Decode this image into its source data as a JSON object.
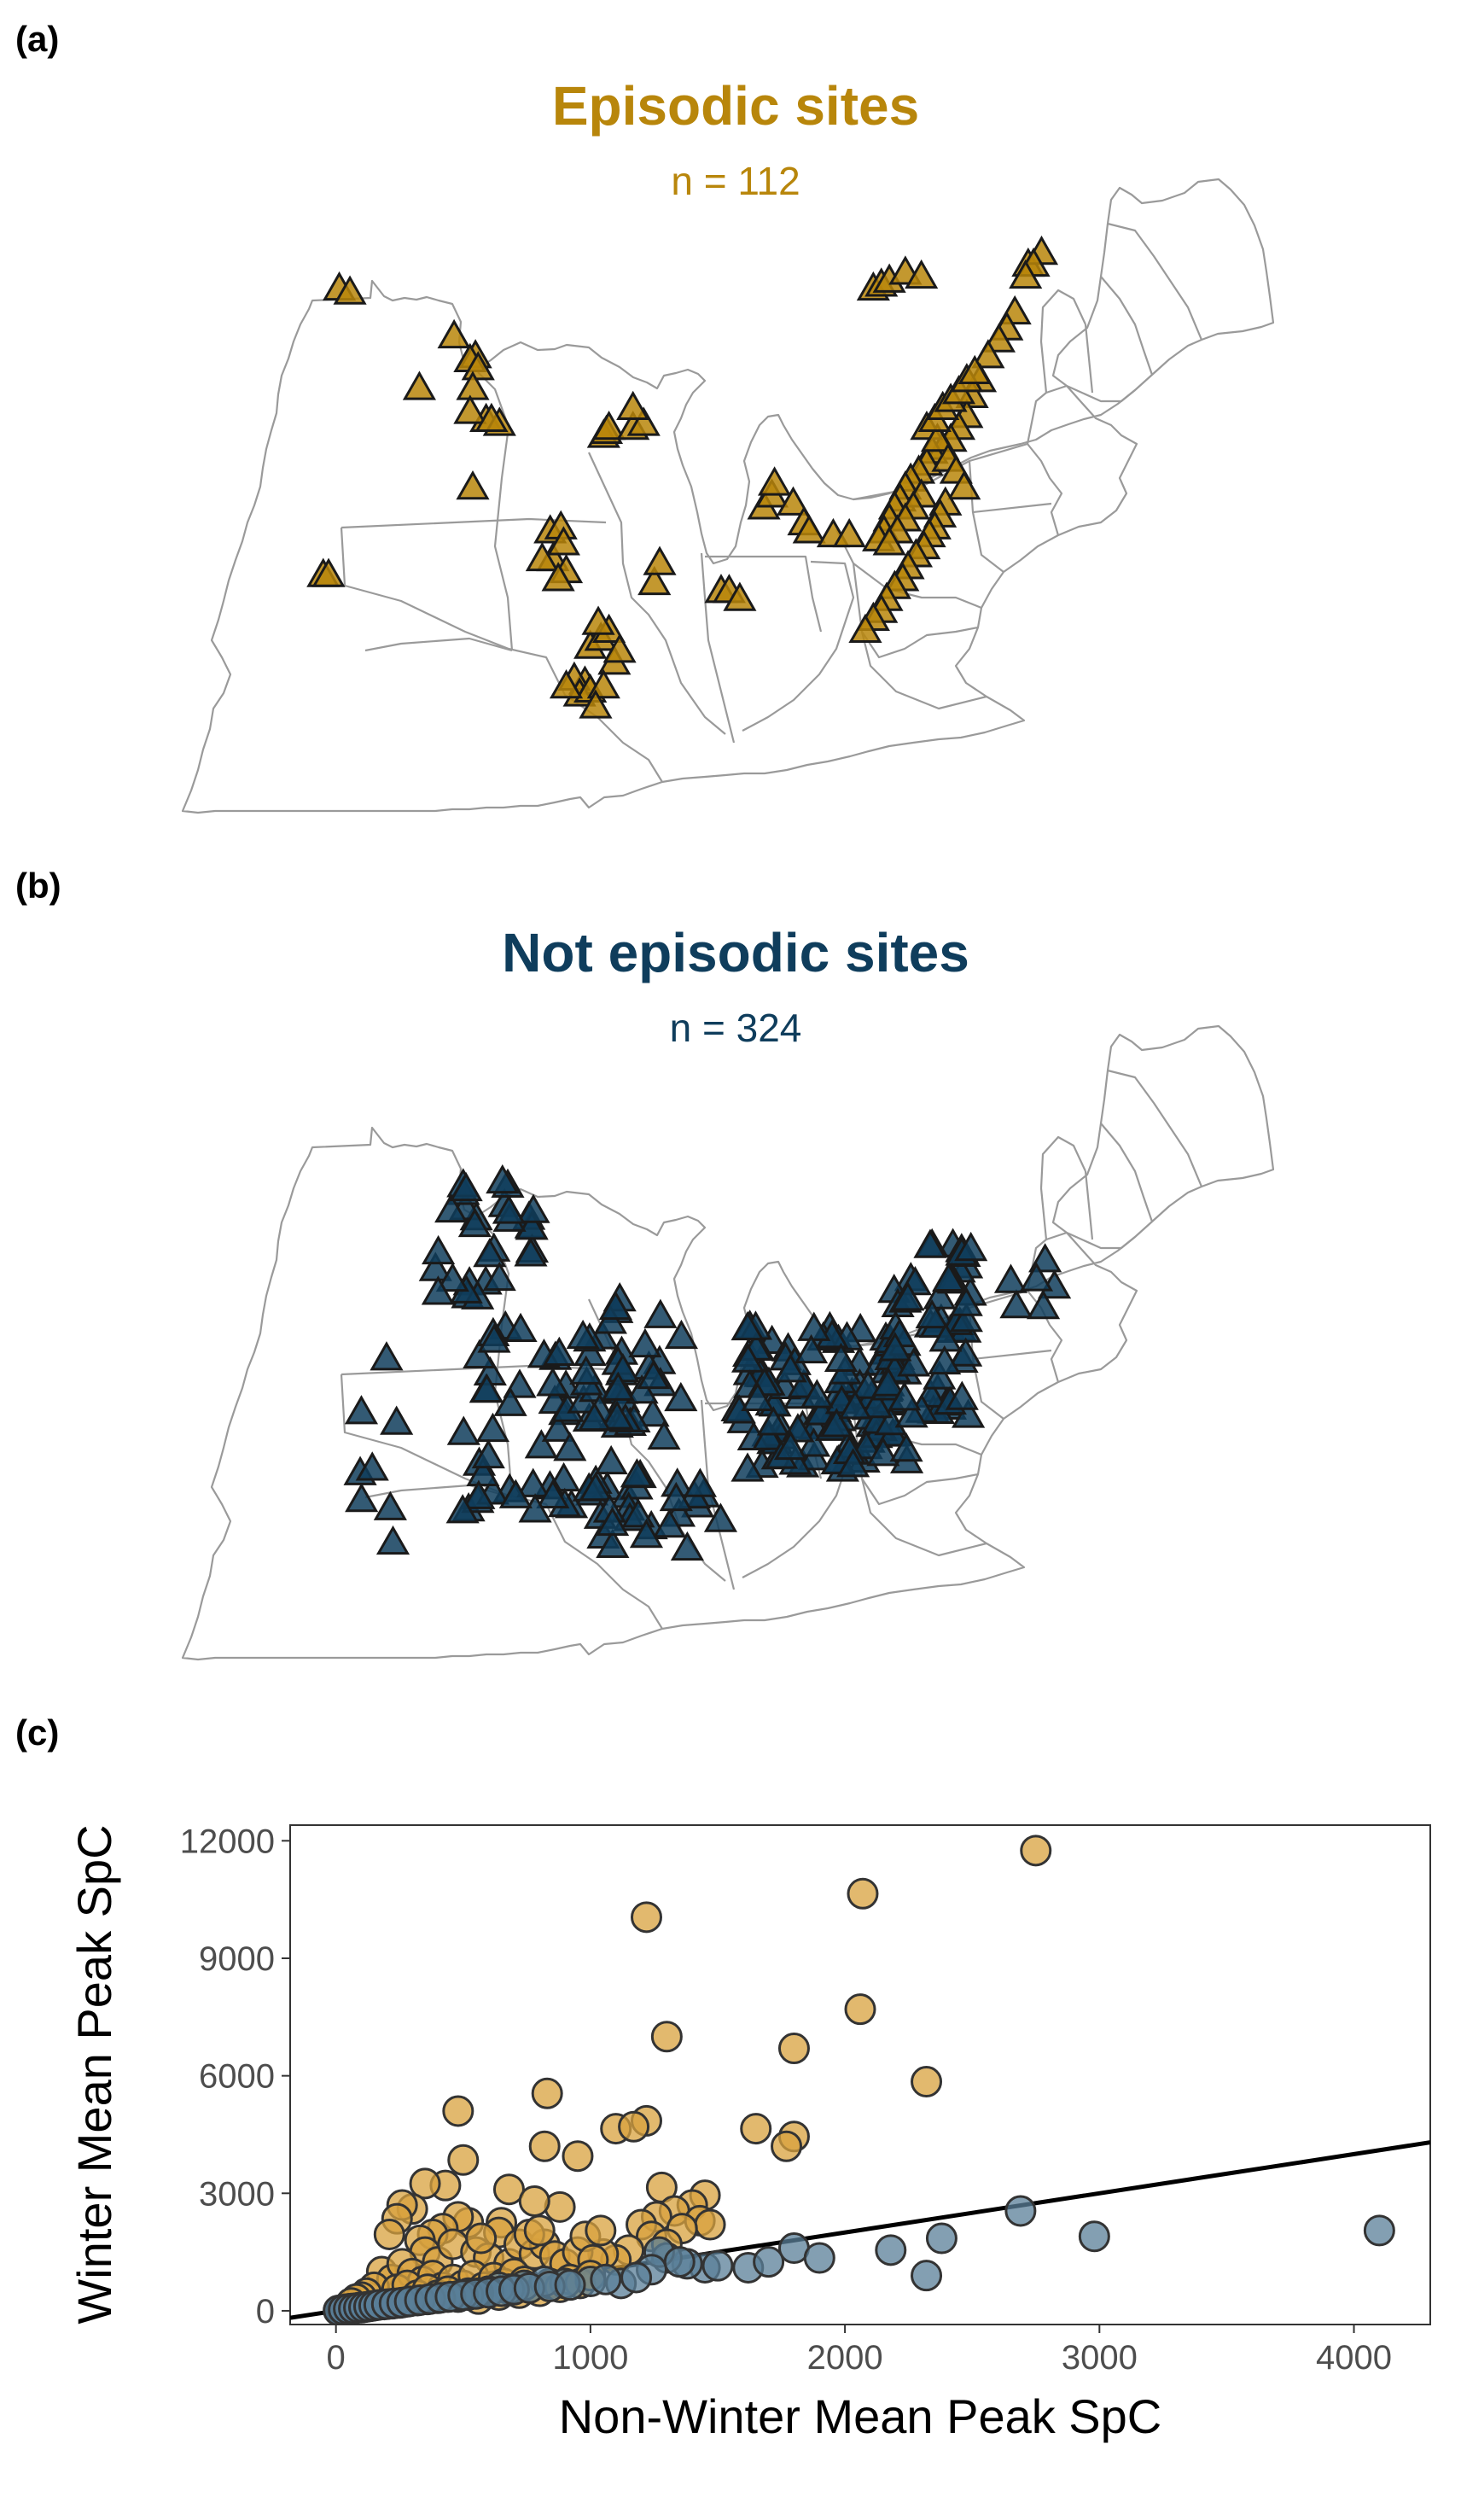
{
  "panels": {
    "a": {
      "letter": "(a)",
      "title": "Episodic sites",
      "subtitle": "n = 112",
      "color": "#b8860b",
      "marker": "triangle-up",
      "sites": [
        [
          -96.6,
          47.4
        ],
        [
          -96.2,
          47.3
        ],
        [
          -92.3,
          46.2
        ],
        [
          -91.5,
          45.7
        ],
        [
          -91.7,
          45.6
        ],
        [
          -91.4,
          45.4
        ],
        [
          -93.6,
          44.9
        ],
        [
          -91.6,
          44.9
        ],
        [
          -91.1,
          44.1
        ],
        [
          -90.6,
          44.0
        ],
        [
          -91.7,
          44.3
        ],
        [
          -90.9,
          44.1
        ],
        [
          -91.6,
          42.4
        ],
        [
          -97.2,
          40.2
        ],
        [
          -97.0,
          40.2
        ],
        [
          -86.7,
          43.7
        ],
        [
          -86.6,
          43.8
        ],
        [
          -86.5,
          43.9
        ],
        [
          -85.6,
          43.9
        ],
        [
          -85.2,
          44.0
        ],
        [
          -85.6,
          44.4
        ],
        [
          -88.7,
          41.3
        ],
        [
          -88.3,
          41.4
        ],
        [
          -88.6,
          40.6
        ],
        [
          -88.2,
          41.0
        ],
        [
          -89.0,
          40.6
        ],
        [
          -88.1,
          40.3
        ],
        [
          -88.4,
          40.1
        ],
        [
          -84.8,
          40.0
        ],
        [
          -84.6,
          40.5
        ],
        [
          -82.3,
          39.8
        ],
        [
          -82.0,
          39.8
        ],
        [
          -81.6,
          39.6
        ],
        [
          -80.7,
          41.9
        ],
        [
          -80.4,
          42.2
        ],
        [
          -80.3,
          42.5
        ],
        [
          -79.6,
          42.0
        ],
        [
          -79.2,
          41.5
        ],
        [
          -79.0,
          41.3
        ],
        [
          -78.1,
          41.2
        ],
        [
          -77.5,
          41.2
        ],
        [
          -76.6,
          47.4
        ],
        [
          -76.3,
          47.5
        ],
        [
          -76.0,
          47.6
        ],
        [
          -75.4,
          47.8
        ],
        [
          -74.8,
          47.7
        ],
        [
          -70.8,
          48.0
        ],
        [
          -70.3,
          48.3
        ],
        [
          -70.6,
          48.0
        ],
        [
          -70.9,
          47.7
        ],
        [
          -71.3,
          46.8
        ],
        [
          -71.6,
          46.4
        ],
        [
          -71.9,
          46.1
        ],
        [
          -72.3,
          45.7
        ],
        [
          -72.6,
          45.1
        ],
        [
          -72.9,
          44.7
        ],
        [
          -73.1,
          44.2
        ],
        [
          -73.4,
          43.9
        ],
        [
          -73.7,
          43.6
        ],
        [
          -74.0,
          43.4
        ],
        [
          -74.4,
          43.3
        ],
        [
          -74.6,
          43.0
        ],
        [
          -74.9,
          42.8
        ],
        [
          -75.2,
          42.6
        ],
        [
          -75.4,
          42.4
        ],
        [
          -75.6,
          42.1
        ],
        [
          -75.8,
          41.9
        ],
        [
          -76.0,
          41.6
        ],
        [
          -76.2,
          41.3
        ],
        [
          -76.4,
          41.1
        ],
        [
          -74.6,
          43.9
        ],
        [
          -74.2,
          43.6
        ],
        [
          -73.8,
          43.1
        ],
        [
          -73.5,
          42.8
        ],
        [
          -73.2,
          42.4
        ],
        [
          -74.8,
          42.2
        ],
        [
          -75.1,
          41.9
        ],
        [
          -75.4,
          41.6
        ],
        [
          -75.7,
          41.3
        ],
        [
          -76.0,
          41.0
        ],
        [
          -87.2,
          38.4
        ],
        [
          -86.8,
          38.6
        ],
        [
          -86.5,
          38.8
        ],
        [
          -86.9,
          39.0
        ],
        [
          -86.3,
          38.0
        ],
        [
          -86.1,
          38.3
        ],
        [
          -87.4,
          37.5
        ],
        [
          -87.8,
          37.6
        ],
        [
          -87.6,
          37.2
        ],
        [
          -87.2,
          37.3
        ],
        [
          -86.7,
          37.4
        ],
        [
          -88.1,
          37.4
        ],
        [
          -87.0,
          36.9
        ],
        [
          -73.9,
          42.0
        ],
        [
          -74.1,
          41.7
        ],
        [
          -74.3,
          41.4
        ],
        [
          -74.5,
          41.2
        ],
        [
          -74.7,
          40.9
        ],
        [
          -75.0,
          40.7
        ],
        [
          -75.3,
          40.4
        ],
        [
          -75.5,
          40.1
        ],
        [
          -75.8,
          39.9
        ],
        [
          -76.1,
          39.6
        ],
        [
          -76.3,
          39.3
        ],
        [
          -76.6,
          39.1
        ],
        [
          -76.9,
          38.8
        ],
        [
          -74.3,
          44.1
        ],
        [
          -74.0,
          44.4
        ],
        [
          -73.7,
          44.6
        ],
        [
          -73.4,
          44.8
        ],
        [
          -73.1,
          45.1
        ],
        [
          -72.8,
          45.3
        ]
      ]
    },
    "b": {
      "letter": "(b)",
      "title": "Not episodic sites",
      "subtitle": "n = 324",
      "color": "#0f3d5c",
      "marker": "triangle-up"
    },
    "c": {
      "letter": "(c)",
      "xlabel": "Non-Winter Mean Peak SpC",
      "ylabel": "Winter Mean Peak SpC"
    }
  },
  "chart_data": {
    "type": "scatter",
    "xlabel": "Non-Winter Mean Peak SpC",
    "ylabel": "Winter Mean Peak SpC",
    "xlim": [
      -180,
      4300
    ],
    "ylim": [
      -350,
      12400
    ],
    "xticks": [
      0,
      1000,
      2000,
      3000,
      4000
    ],
    "yticks": [
      0,
      3000,
      6000,
      9000,
      12000
    ],
    "grid": false,
    "legend": "none",
    "reference_line": {
      "slope": 1,
      "intercept": 0
    },
    "series": [
      {
        "color": "#d8a13e",
        "points": [
          [
            2750,
            11750
          ],
          [
            1220,
            10050
          ],
          [
            2070,
            10650
          ],
          [
            1300,
            7000
          ],
          [
            2060,
            7700
          ],
          [
            1800,
            6700
          ],
          [
            2320,
            5850
          ],
          [
            830,
            5550
          ],
          [
            480,
            5100
          ],
          [
            500,
            3850
          ],
          [
            1220,
            4850
          ],
          [
            1100,
            4650
          ],
          [
            1170,
            4700
          ],
          [
            1800,
            4450
          ],
          [
            1770,
            4200
          ],
          [
            1650,
            4650
          ],
          [
            820,
            4200
          ],
          [
            950,
            3950
          ],
          [
            680,
            3100
          ],
          [
            430,
            3200
          ],
          [
            350,
            3250
          ],
          [
            1280,
            3150
          ],
          [
            1450,
            2950
          ],
          [
            1400,
            2700
          ],
          [
            1330,
            2550
          ],
          [
            1260,
            2400
          ],
          [
            1200,
            2200
          ],
          [
            1430,
            2300
          ],
          [
            1470,
            2200
          ],
          [
            1360,
            2100
          ],
          [
            1240,
            1900
          ],
          [
            1300,
            1700
          ],
          [
            1150,
            1550
          ],
          [
            1100,
            1300
          ],
          [
            1050,
            1450
          ],
          [
            880,
            2650
          ],
          [
            780,
            2800
          ],
          [
            650,
            2250
          ],
          [
            640,
            2000
          ],
          [
            520,
            2250
          ],
          [
            480,
            2400
          ],
          [
            420,
            2100
          ],
          [
            380,
            1950
          ],
          [
            300,
            2600
          ],
          [
            260,
            2700
          ],
          [
            240,
            2350
          ],
          [
            210,
            1950
          ],
          [
            330,
            1800
          ],
          [
            350,
            1500
          ],
          [
            400,
            1250
          ],
          [
            460,
            1700
          ],
          [
            550,
            1500
          ],
          [
            600,
            1350
          ],
          [
            680,
            1200
          ],
          [
            720,
            1700
          ],
          [
            780,
            1450
          ],
          [
            820,
            1700
          ],
          [
            860,
            1400
          ],
          [
            900,
            1200
          ],
          [
            950,
            1500
          ],
          [
            980,
            1900
          ],
          [
            1010,
            1300
          ],
          [
            1040,
            2050
          ],
          [
            760,
            1950
          ],
          [
            800,
            2050
          ],
          [
            570,
            1850
          ],
          [
            180,
            1000
          ],
          [
            220,
            800
          ],
          [
            260,
            1200
          ],
          [
            300,
            950
          ],
          [
            340,
            750
          ],
          [
            380,
            900
          ],
          [
            420,
            600
          ],
          [
            460,
            800
          ],
          [
            500,
            650
          ],
          [
            540,
            900
          ],
          [
            580,
            600
          ],
          [
            620,
            850
          ],
          [
            660,
            700
          ],
          [
            700,
            950
          ],
          [
            740,
            750
          ],
          [
            150,
            600
          ],
          [
            120,
            450
          ],
          [
            100,
            350
          ],
          [
            80,
            300
          ],
          [
            60,
            200
          ],
          [
            240,
            550
          ],
          [
            280,
            650
          ],
          [
            320,
            400
          ],
          [
            360,
            550
          ],
          [
            400,
            400
          ],
          [
            440,
            500
          ],
          [
            480,
            350
          ],
          [
            520,
            450
          ],
          [
            560,
            300
          ],
          [
            600,
            500
          ],
          [
            640,
            400
          ],
          [
            680,
            550
          ],
          [
            720,
            450
          ],
          [
            760,
            600
          ],
          [
            800,
            500
          ],
          [
            840,
            700
          ],
          [
            880,
            600
          ],
          [
            920,
            800
          ],
          [
            960,
            700
          ],
          [
            1000,
            900
          ]
        ]
      },
      {
        "color": "#5a7f98",
        "points": [
          [
            4100,
            2050
          ],
          [
            2980,
            1900
          ],
          [
            2690,
            2550
          ],
          [
            2380,
            1850
          ],
          [
            2320,
            900
          ],
          [
            2180,
            1550
          ],
          [
            1800,
            1600
          ],
          [
            1620,
            1100
          ],
          [
            1450,
            1100
          ],
          [
            1380,
            1200
          ],
          [
            1300,
            1350
          ],
          [
            1270,
            1500
          ],
          [
            1240,
            1050
          ],
          [
            1120,
            700
          ],
          [
            1000,
            750
          ],
          [
            900,
            700
          ],
          [
            820,
            750
          ],
          [
            740,
            650
          ],
          [
            680,
            550
          ],
          [
            640,
            600
          ],
          [
            600,
            500
          ],
          [
            560,
            450
          ],
          [
            520,
            400
          ],
          [
            480,
            380
          ],
          [
            440,
            350
          ],
          [
            400,
            320
          ],
          [
            360,
            290
          ],
          [
            320,
            260
          ],
          [
            280,
            230
          ],
          [
            250,
            200
          ],
          [
            220,
            180
          ],
          [
            190,
            160
          ],
          [
            160,
            140
          ],
          [
            140,
            120
          ],
          [
            120,
            100
          ],
          [
            100,
            80
          ],
          [
            80,
            70
          ],
          [
            60,
            60
          ],
          [
            40,
            40
          ],
          [
            20,
            20
          ],
          [
            10,
            10
          ],
          [
            30,
            30
          ],
          [
            50,
            50
          ],
          [
            70,
            60
          ],
          [
            90,
            80
          ],
          [
            110,
            90
          ],
          [
            130,
            110
          ],
          [
            150,
            130
          ],
          [
            170,
            150
          ],
          [
            200,
            170
          ],
          [
            230,
            190
          ],
          [
            260,
            210
          ],
          [
            290,
            240
          ],
          [
            330,
            270
          ],
          [
            370,
            300
          ],
          [
            410,
            330
          ],
          [
            450,
            360
          ],
          [
            500,
            400
          ],
          [
            550,
            430
          ],
          [
            600,
            460
          ],
          [
            650,
            500
          ],
          [
            700,
            540
          ],
          [
            760,
            580
          ],
          [
            840,
            620
          ],
          [
            920,
            660
          ],
          [
            1060,
            800
          ],
          [
            1180,
            850
          ],
          [
            1350,
            1250
          ],
          [
            1500,
            1150
          ],
          [
            1700,
            1250
          ],
          [
            1900,
            1350
          ]
        ]
      }
    ]
  }
}
